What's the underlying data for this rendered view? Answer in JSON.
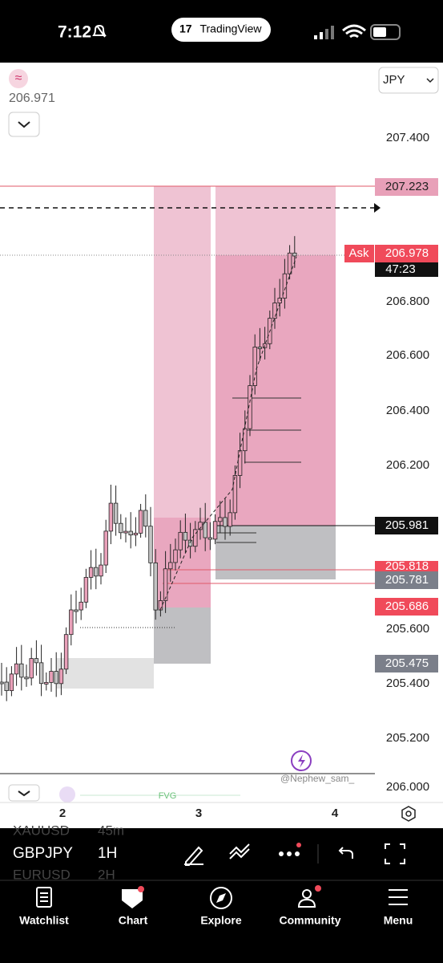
{
  "status_bar": {
    "time": "7:12",
    "app": "TradingView"
  },
  "header": {
    "price": "206.971",
    "currency": "JPY"
  },
  "price_axis": [
    "207.400",
    "206.800",
    "206.600",
    "206.400",
    "206.200",
    "205.600",
    "205.400",
    "205.200",
    "206.000"
  ],
  "price_tags": {
    "target": "207.223",
    "ask_label": "Ask",
    "ask": "206.978",
    "countdown": "47:23",
    "last": "205.981",
    "level_a": "205.818",
    "level_b": "205.781",
    "level_c": "205.686",
    "level_d": "205.475"
  },
  "watermark": "@Nephew_sam_",
  "indicator": "FVG",
  "time_axis": [
    "2",
    "3",
    "4"
  ],
  "toolbar": {
    "symbol": "GBPJPY",
    "interval": "1H",
    "prev_symbol": "XAUUSD",
    "prev_interval": "45m",
    "next_symbol": "EURUSD",
    "next_interval": "2H"
  },
  "tabs": [
    "Watchlist",
    "Chart",
    "Explore",
    "Community",
    "Menu"
  ]
}
